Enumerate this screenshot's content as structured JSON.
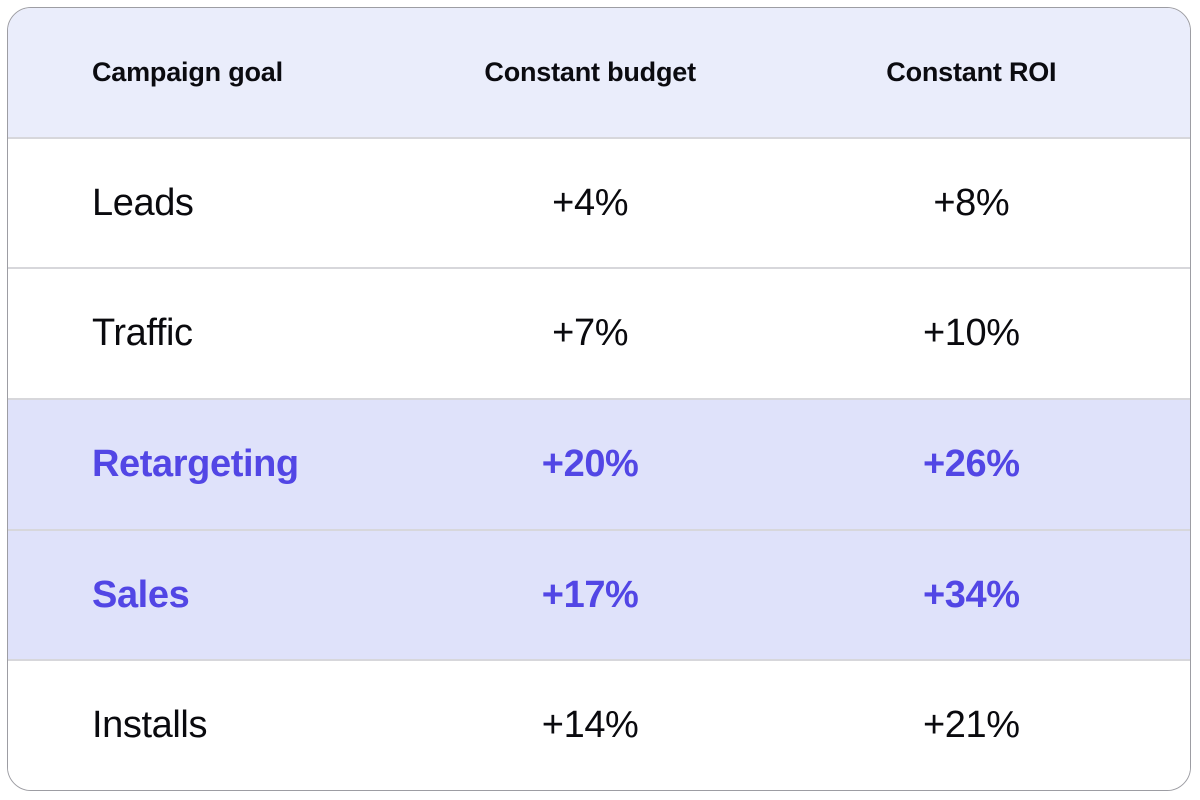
{
  "chart_data": {
    "type": "table",
    "columns": [
      "Campaign goal",
      "Constant budget",
      "Constant ROI"
    ],
    "rows": [
      [
        "Leads",
        "+4%",
        "+8%"
      ],
      [
        "Traffic",
        "+7%",
        "+10%"
      ],
      [
        "Retargeting",
        "+20%",
        "+26%"
      ],
      [
        "Sales",
        "+17%",
        "+34%"
      ],
      [
        "Installs",
        "+14%",
        "+21%"
      ]
    ],
    "highlighted_rows": [
      "Retargeting",
      "Sales"
    ],
    "layout_hints": {
      "header_row": true,
      "first_column_align": "left",
      "value_columns_align": "center"
    }
  },
  "colors": {
    "card_bg": "#ffffff",
    "card_border": "#9d9da3",
    "header_bg": "#eaedfb",
    "header_text": "#0b0b10",
    "body_text": "#0a0a0e",
    "highlight_bg": "#dfe2fa",
    "highlight_text": "#5246e5",
    "divider": "#d7d7db"
  }
}
